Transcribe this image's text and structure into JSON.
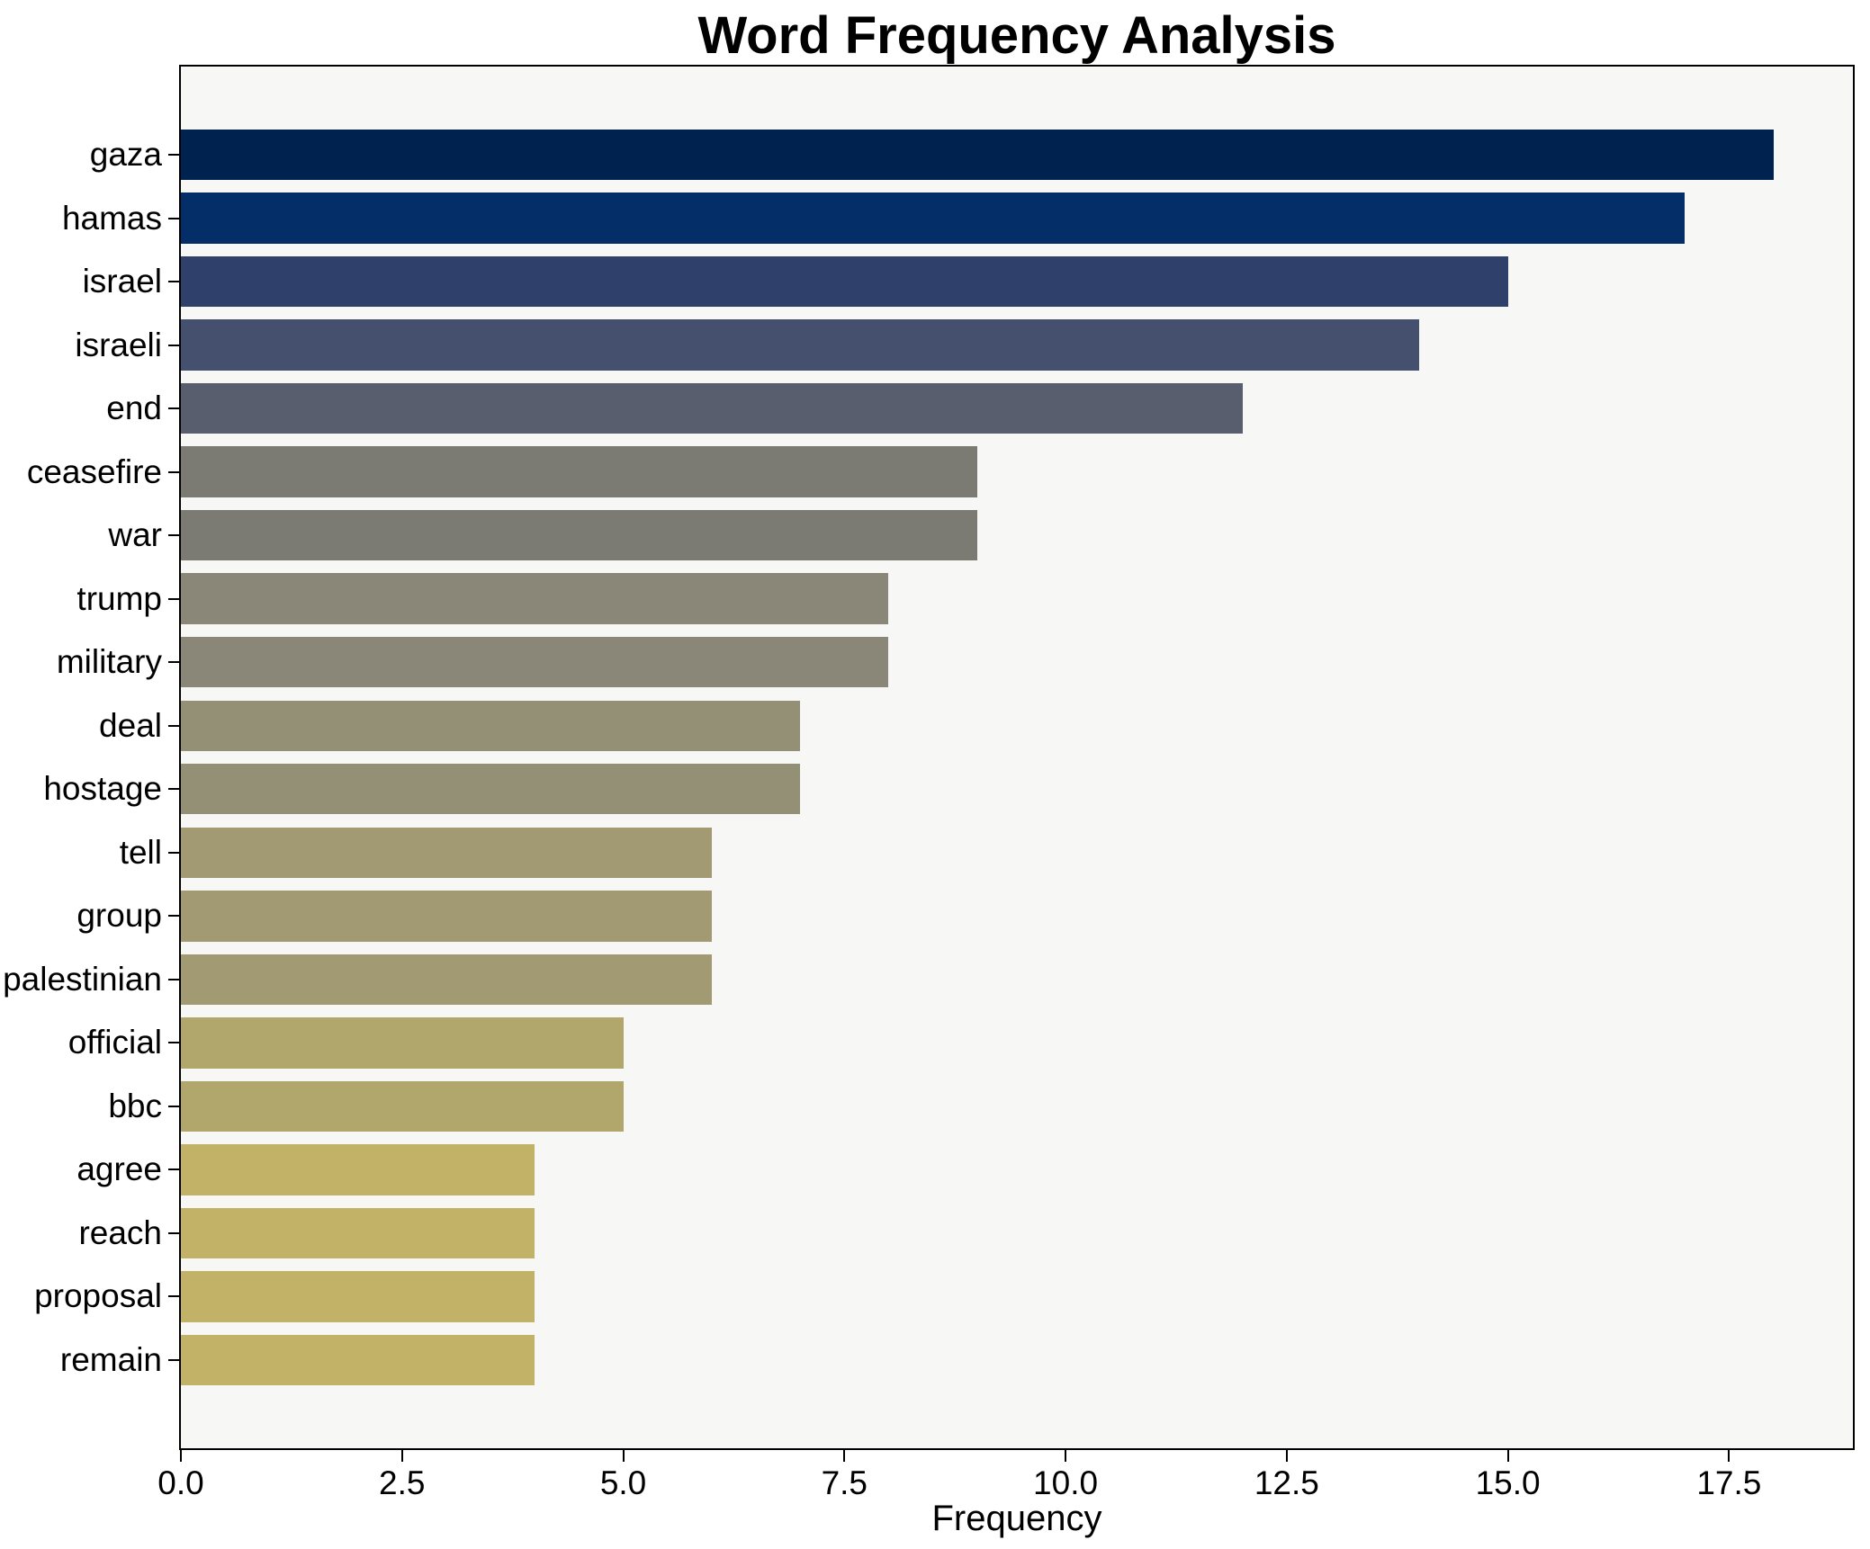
{
  "chart_data": {
    "type": "bar",
    "orientation": "horizontal",
    "title": "Word Frequency Analysis",
    "xlabel": "Frequency",
    "ylabel": "",
    "categories": [
      "gaza",
      "hamas",
      "israel",
      "israeli",
      "end",
      "ceasefire",
      "war",
      "trump",
      "military",
      "deal",
      "hostage",
      "tell",
      "group",
      "palestinian",
      "official",
      "bbc",
      "agree",
      "reach",
      "proposal",
      "remain"
    ],
    "values": [
      18,
      17,
      15,
      14,
      12,
      9,
      9,
      8,
      8,
      7,
      7,
      6,
      6,
      6,
      5,
      5,
      4,
      4,
      4,
      4
    ],
    "bar_colors": [
      "#00224e",
      "#032e68",
      "#2f406b",
      "#454f6e",
      "#585e6d",
      "#7b7a73",
      "#7b7a73",
      "#8a8778",
      "#8a8778",
      "#949076",
      "#949076",
      "#a19a72",
      "#a19a72",
      "#a19a72",
      "#b1a76c",
      "#b1a76c",
      "#c2b267",
      "#c2b267",
      "#c2b267",
      "#c2b267"
    ],
    "xlim": [
      0,
      18.9
    ],
    "xticks": [
      0.0,
      2.5,
      5.0,
      7.5,
      10.0,
      12.5,
      15.0,
      17.5
    ],
    "xtick_labels": [
      "0.0",
      "2.5",
      "5.0",
      "7.5",
      "10.0",
      "12.5",
      "15.0",
      "17.5"
    ],
    "bar_fraction_of_slot": 0.8,
    "axis_margin_fraction": 0.05,
    "grid": false,
    "legend": null,
    "colors": {
      "plot_background": "#f7f7f5",
      "figure_background": "#ffffff",
      "spine": "#000000",
      "text": "#000000"
    }
  }
}
